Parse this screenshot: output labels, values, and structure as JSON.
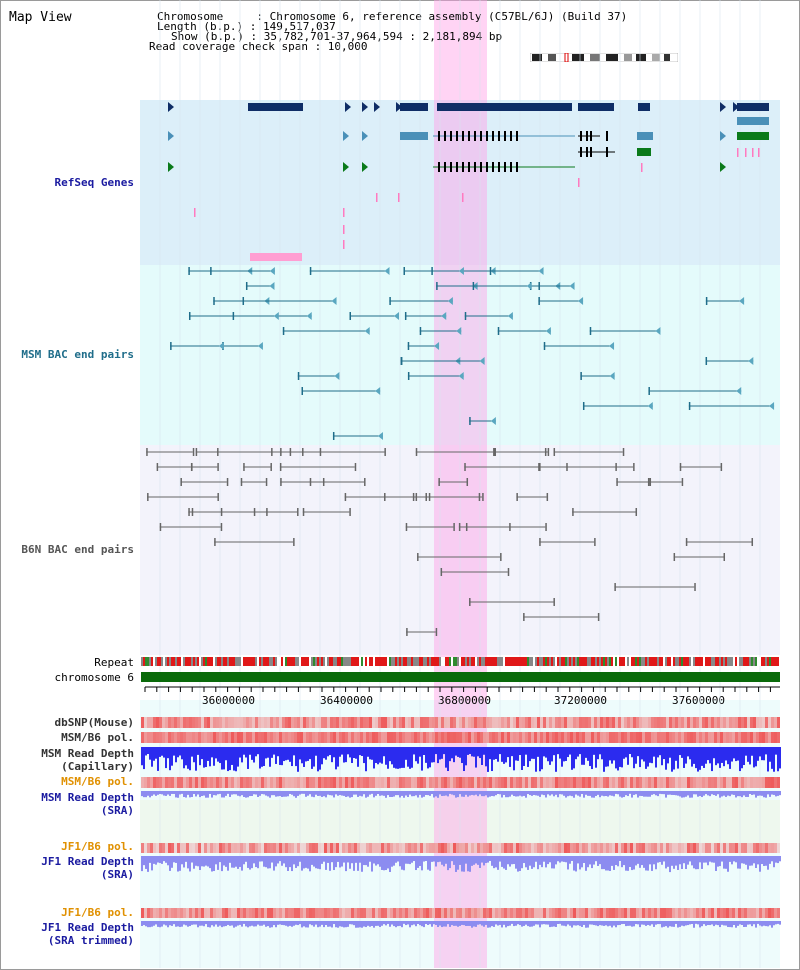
{
  "header": {
    "title": "Map View",
    "chromosome_line": "Chromosome     : Chromosome 6, reference assembly (C57BL/6J) (Build 37)",
    "length_line": "Length (b.p.) : 149,517,037",
    "show_line": "Show (b.p.) : 35,782,701-37,964,594 : 2,181,894 bp",
    "coverage_line": "Read coverage check span : 10,000"
  },
  "tracks": {
    "refseq": "RefSeq Genes",
    "msm_bac": "MSM BAC end pairs",
    "b6n_bac": "B6N BAC end pairs",
    "repeat": "Repeat",
    "chromosome": "chromosome 6",
    "dbsnp": "dbSNP(Mouse)",
    "msm_b6_pol_1": "MSM/B6 pol.",
    "msm_read_depth_cap_1": "MSM Read Depth",
    "msm_read_depth_cap_2": "(Capillary)",
    "msm_b6_pol_2": "MSM/B6 pol.",
    "msm_read_depth_sra_1": "MSM Read Depth",
    "msm_read_depth_sra_2": "(SRA)",
    "jf1_b6_pol_1": "JF1/B6 pol.",
    "jf1_read_depth_sra_1": "JF1 Read Depth",
    "jf1_read_depth_sra_2": "(SRA)",
    "jf1_b6_pol_2": "JF1/B6 pol.",
    "jf1_read_depth_trim_1": "JF1 Read Depth",
    "jf1_read_depth_trim_2": "(SRA trimmed)"
  },
  "axis": {
    "ticks": [
      "36000000",
      "36400000",
      "36800000",
      "37200000",
      "37600000"
    ]
  },
  "colors": {
    "refseq_bg": "#dceff9",
    "msm_bg": "#e4fbfb",
    "b6n_bg": "#f3f3fb",
    "highlight": "#ffb4e6",
    "gene_dark": "#0f2d66",
    "gene_mid": "#4a90b8",
    "gene_green": "#0a7a1a",
    "msm_pair": "#1f6d8a",
    "b6n_pair": "#666666",
    "depth_blue": "#2b2bef",
    "depth_light": "#8c8cf0",
    "pol_red": "#ee3333"
  }
}
